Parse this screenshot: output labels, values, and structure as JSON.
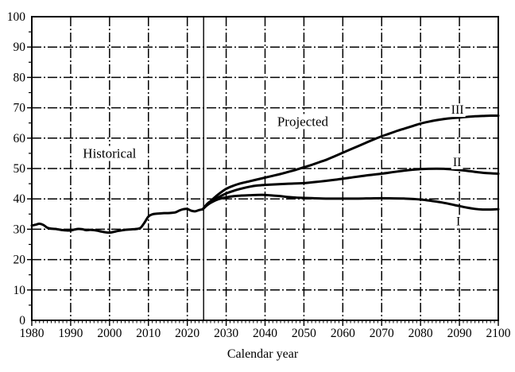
{
  "chart_data": {
    "type": "line",
    "title": "",
    "xlabel": "Calendar year",
    "ylabel": "",
    "xlim": [
      1980,
      2100
    ],
    "ylim": [
      0,
      100
    ],
    "x_ticks": [
      1980,
      1990,
      2000,
      2010,
      2020,
      2030,
      2040,
      2050,
      2060,
      2070,
      2080,
      2090,
      2100
    ],
    "y_ticks": [
      0,
      10,
      20,
      30,
      40,
      50,
      60,
      70,
      80,
      90,
      100
    ],
    "x_minor_step": 1,
    "y_minor_step": 5,
    "grid_style": "dash-dot",
    "divider_year": 2024.2,
    "line_color": "#000000",
    "grid_color": "#000000",
    "series": [
      {
        "name": "Historical",
        "points": [
          [
            1980,
            31.2
          ],
          [
            1981,
            31.5
          ],
          [
            1982,
            31.8
          ],
          [
            1983,
            31.4
          ],
          [
            1984,
            30.5
          ],
          [
            1985,
            30.2
          ],
          [
            1986,
            30.1
          ],
          [
            1987,
            29.9
          ],
          [
            1988,
            29.7
          ],
          [
            1989,
            29.6
          ],
          [
            1990,
            29.6
          ],
          [
            1991,
            29.9
          ],
          [
            1992,
            30.1
          ],
          [
            1993,
            30.0
          ],
          [
            1994,
            29.7
          ],
          [
            1995,
            29.8
          ],
          [
            1996,
            29.7
          ],
          [
            1997,
            29.5
          ],
          [
            1998,
            29.2
          ],
          [
            1999,
            29.0
          ],
          [
            2000,
            28.9
          ],
          [
            2001,
            29.1
          ],
          [
            2002,
            29.4
          ],
          [
            2003,
            29.6
          ],
          [
            2004,
            29.8
          ],
          [
            2005,
            29.9
          ],
          [
            2006,
            30.0
          ],
          [
            2007,
            30.1
          ],
          [
            2008,
            30.5
          ],
          [
            2009,
            32.2
          ],
          [
            2010,
            34.2
          ],
          [
            2011,
            34.9
          ],
          [
            2012,
            35.1
          ],
          [
            2013,
            35.2
          ],
          [
            2014,
            35.3
          ],
          [
            2015,
            35.3
          ],
          [
            2016,
            35.4
          ],
          [
            2017,
            35.6
          ],
          [
            2018,
            36.2
          ],
          [
            2019,
            36.6
          ],
          [
            2020,
            36.7
          ],
          [
            2021,
            36.1
          ],
          [
            2022,
            35.9
          ],
          [
            2023,
            36.3
          ],
          [
            2024,
            36.6
          ]
        ]
      },
      {
        "name": "I",
        "points": [
          [
            2024,
            36.6
          ],
          [
            2025,
            37.8
          ],
          [
            2026,
            38.7
          ],
          [
            2028,
            39.9
          ],
          [
            2030,
            40.5
          ],
          [
            2032,
            40.9
          ],
          [
            2034,
            41.1
          ],
          [
            2036,
            41.2
          ],
          [
            2038,
            41.3
          ],
          [
            2040,
            41.3
          ],
          [
            2042,
            41.1
          ],
          [
            2044,
            40.9
          ],
          [
            2046,
            40.6
          ],
          [
            2048,
            40.4
          ],
          [
            2050,
            40.3
          ],
          [
            2053,
            40.2
          ],
          [
            2056,
            40.1
          ],
          [
            2060,
            40.1
          ],
          [
            2064,
            40.1
          ],
          [
            2068,
            40.2
          ],
          [
            2072,
            40.2
          ],
          [
            2076,
            40.1
          ],
          [
            2080,
            39.8
          ],
          [
            2083,
            39.3
          ],
          [
            2086,
            38.7
          ],
          [
            2089,
            37.9
          ],
          [
            2092,
            37.1
          ],
          [
            2094,
            36.7
          ],
          [
            2096,
            36.5
          ],
          [
            2098,
            36.5
          ],
          [
            2100,
            36.6
          ]
        ]
      },
      {
        "name": "II",
        "points": [
          [
            2024,
            36.6
          ],
          [
            2025,
            38.0
          ],
          [
            2026,
            38.9
          ],
          [
            2028,
            40.5
          ],
          [
            2030,
            41.8
          ],
          [
            2032,
            42.7
          ],
          [
            2034,
            43.4
          ],
          [
            2036,
            44.0
          ],
          [
            2038,
            44.4
          ],
          [
            2040,
            44.6
          ],
          [
            2043,
            44.8
          ],
          [
            2046,
            45.0
          ],
          [
            2050,
            45.2
          ],
          [
            2054,
            45.7
          ],
          [
            2058,
            46.3
          ],
          [
            2062,
            47.0
          ],
          [
            2066,
            47.7
          ],
          [
            2070,
            48.3
          ],
          [
            2074,
            49.0
          ],
          [
            2078,
            49.6
          ],
          [
            2082,
            49.9
          ],
          [
            2086,
            49.9
          ],
          [
            2090,
            49.5
          ],
          [
            2094,
            48.9
          ],
          [
            2097,
            48.5
          ],
          [
            2100,
            48.3
          ]
        ]
      },
      {
        "name": "III",
        "points": [
          [
            2024,
            36.6
          ],
          [
            2025,
            38.2
          ],
          [
            2026,
            39.3
          ],
          [
            2028,
            41.5
          ],
          [
            2030,
            43.3
          ],
          [
            2032,
            44.4
          ],
          [
            2034,
            45.2
          ],
          [
            2036,
            45.8
          ],
          [
            2038,
            46.4
          ],
          [
            2040,
            47.0
          ],
          [
            2042,
            47.6
          ],
          [
            2044,
            48.2
          ],
          [
            2046,
            48.9
          ],
          [
            2048,
            49.6
          ],
          [
            2050,
            50.4
          ],
          [
            2052,
            51.2
          ],
          [
            2054,
            52.1
          ],
          [
            2056,
            53.0
          ],
          [
            2058,
            54.1
          ],
          [
            2060,
            55.2
          ],
          [
            2062,
            56.3
          ],
          [
            2064,
            57.4
          ],
          [
            2066,
            58.5
          ],
          [
            2068,
            59.6
          ],
          [
            2070,
            60.6
          ],
          [
            2072,
            61.5
          ],
          [
            2074,
            62.4
          ],
          [
            2076,
            63.2
          ],
          [
            2078,
            64.0
          ],
          [
            2080,
            64.8
          ],
          [
            2082,
            65.4
          ],
          [
            2084,
            65.9
          ],
          [
            2086,
            66.3
          ],
          [
            2088,
            66.6
          ],
          [
            2090,
            66.8
          ],
          [
            2092,
            67.0
          ],
          [
            2094,
            67.2
          ],
          [
            2096,
            67.3
          ],
          [
            2098,
            67.4
          ],
          [
            2100,
            67.4
          ]
        ]
      }
    ],
    "annotations": [
      {
        "text": "Historical",
        "year": 2000.0,
        "value": 55.1,
        "class": "annot"
      },
      {
        "text": "Projected",
        "year": 2049.7,
        "value": 65.6,
        "class": "annot"
      },
      {
        "text": "III",
        "year": 2089.5,
        "value": 69.6,
        "class": "roman"
      },
      {
        "text": "II",
        "year": 2089.4,
        "value": 52.4,
        "class": "roman"
      },
      {
        "text": "I",
        "year": 2089.7,
        "value": 32.9,
        "class": "roman"
      }
    ]
  }
}
